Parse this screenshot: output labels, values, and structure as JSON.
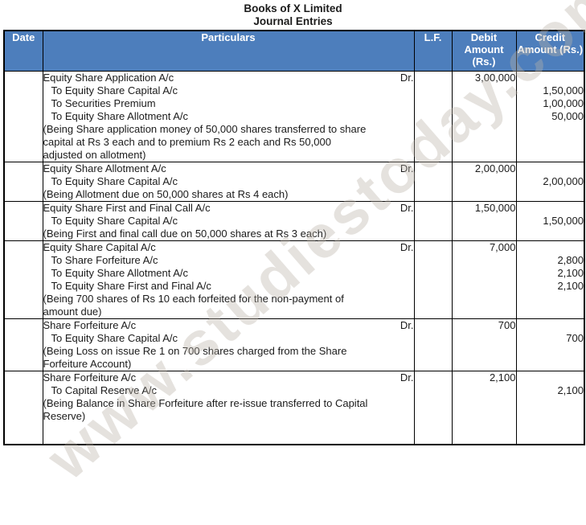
{
  "title": {
    "line1": "Books of X Limited",
    "line2": "Journal Entries"
  },
  "watermark": "www.studiestoday.com",
  "table": {
    "headers": {
      "date": "Date",
      "particulars": "Particulars",
      "lf": "L.F.",
      "debit": "Debit Amount (Rs.)",
      "credit": "Credit Amount (Rs.)"
    }
  },
  "entries": [
    {
      "lines": [
        {
          "text": "Equity Share Application A/c",
          "indent": false,
          "dr": "Dr.",
          "debit": "3,00,000",
          "credit": ""
        },
        {
          "text": "To Equity Share Capital A/c",
          "indent": true,
          "dr": "",
          "debit": "",
          "credit": "1,50,000"
        },
        {
          "text": "To Securities Premium",
          "indent": true,
          "dr": "",
          "debit": "",
          "credit": "1,00,000"
        },
        {
          "text": "To Equity Share Allotment A/c",
          "indent": true,
          "dr": "",
          "debit": "",
          "credit": "50,000"
        }
      ],
      "narration": [
        "(Being Share application money of 50,000 shares transferred to share",
        "capital at Rs 3 each and to premium Rs 2 each and Rs 50,000",
        "adjusted on allotment)"
      ]
    },
    {
      "lines": [
        {
          "text": "Equity Share Allotment A/c",
          "indent": false,
          "dr": "Dr.",
          "debit": "2,00,000",
          "credit": ""
        },
        {
          "text": "To Equity Share Capital A/c",
          "indent": true,
          "dr": "",
          "debit": "",
          "credit": "2,00,000"
        }
      ],
      "narration": [
        "(Being Allotment due on 50,000 shares at Rs 4 each)"
      ]
    },
    {
      "lines": [
        {
          "text": "Equity Share First and Final Call A/c",
          "indent": false,
          "dr": "Dr.",
          "debit": "1,50,000",
          "credit": ""
        },
        {
          "text": "To Equity Share Capital A/c",
          "indent": true,
          "dr": "",
          "debit": "",
          "credit": "1,50,000"
        }
      ],
      "narration": [
        "(Being First and final call due on 50,000 shares at Rs 3 each)"
      ]
    },
    {
      "lines": [
        {
          "text": "Equity Share Capital A/c",
          "indent": false,
          "dr": "Dr.",
          "debit": "7,000",
          "credit": ""
        },
        {
          "text": "To Share Forfeiture A/c",
          "indent": true,
          "dr": "",
          "debit": "",
          "credit": "2,800"
        },
        {
          "text": "To Equity Share Allotment A/c",
          "indent": true,
          "dr": "",
          "debit": "",
          "credit": "2,100"
        },
        {
          "text": "To Equity Share First and Final A/c",
          "indent": true,
          "dr": "",
          "debit": "",
          "credit": "2,100"
        }
      ],
      "narration": [
        "(Being 700 shares of Rs 10 each forfeited for the non-payment of",
        "amount due)"
      ]
    },
    {
      "lines": [
        {
          "text": "Share Forfeiture A/c",
          "indent": false,
          "dr": "Dr.",
          "debit": "700",
          "credit": ""
        },
        {
          "text": "To Equity Share Capital A/c",
          "indent": true,
          "dr": "",
          "debit": "",
          "credit": "700"
        }
      ],
      "narration": [
        "(Being Loss on issue Re 1 on 700 shares charged from the Share",
        "Forfeiture Account)"
      ]
    },
    {
      "lines": [
        {
          "text": "Share Forfeiture A/c",
          "indent": false,
          "dr": "Dr.",
          "debit": "2,100",
          "credit": ""
        },
        {
          "text": "To Capital Reserve A/c",
          "indent": true,
          "dr": "",
          "debit": "",
          "credit": "2,100"
        }
      ],
      "narration": [
        "(Being Balance in Share Forfeiture after re-issue transferred to Capital",
        "Reserve)"
      ]
    }
  ]
}
